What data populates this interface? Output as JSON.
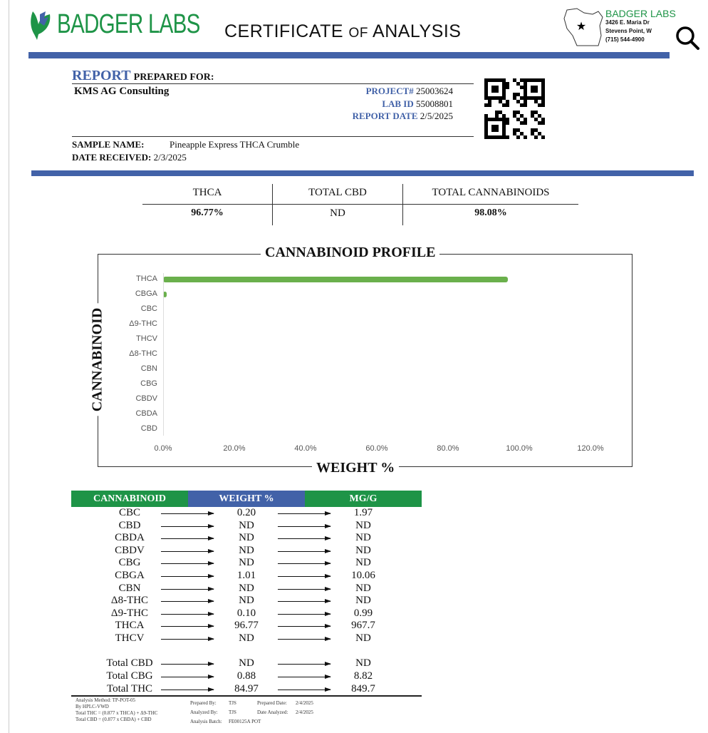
{
  "header": {
    "brand": "BADGER LABS",
    "title_a": "CERTIFICATE",
    "title_of": "OF",
    "title_b": "ANALYSIS",
    "addr_name": "BADGER LABS",
    "addr_line1": "3426 E. Maria Dr",
    "addr_line2": "Stevens Point, W",
    "phone": "(715) 544-4900"
  },
  "report": {
    "report": "REPORT",
    "prepared_for": "PREPARED FOR:",
    "client": "KMS AG Consulting",
    "project_label": "PROJECT#",
    "project": "25003624",
    "labid_label": "LAB ID",
    "labid": "55008801",
    "date_label": "REPORT DATE",
    "date": "2/5/2025",
    "sample_label": "SAMPLE NAME:",
    "sample": "Pineapple Express THCA Crumble",
    "received_label": "DATE RECEIVED:",
    "received": "2/3/2025"
  },
  "summary": {
    "headers": [
      "THCA",
      "TOTAL CBD",
      "TOTAL CANNABINOIDS"
    ],
    "values": [
      "96.77%",
      "ND",
      "98.08%"
    ]
  },
  "chart_data": {
    "type": "bar",
    "orientation": "horizontal",
    "title": "CANNABINOID PROFILE",
    "xlabel": "WEIGHT %",
    "ylabel": "CANNABINOID",
    "categories": [
      "THCA",
      "CBGA",
      "CBC",
      "Δ9-THC",
      "THCV",
      "Δ8-THC",
      "CBN",
      "CBG",
      "CBDV",
      "CBDA",
      "CBD"
    ],
    "values": [
      96.77,
      1.01,
      0.2,
      0.1,
      0,
      0,
      0,
      0,
      0,
      0,
      0
    ],
    "xlim": [
      0,
      120
    ],
    "xticks": [
      "0.0%",
      "20.0%",
      "40.0%",
      "60.0%",
      "80.0%",
      "100.0%",
      "120.0%"
    ],
    "color": "#6ab04c"
  },
  "table": {
    "headers": [
      "CANNABINOID",
      "WEIGHT %",
      "MG/G"
    ],
    "header_colors": [
      "#1e9447",
      "#4262a8",
      "#1e9447"
    ],
    "rows": [
      [
        "CBC",
        "0.20",
        "1.97"
      ],
      [
        "CBD",
        "ND",
        "ND"
      ],
      [
        "CBDA",
        "ND",
        "ND"
      ],
      [
        "CBDV",
        "ND",
        "ND"
      ],
      [
        "CBG",
        "ND",
        "ND"
      ],
      [
        "CBGA",
        "1.01",
        "10.06"
      ],
      [
        "CBN",
        "ND",
        "ND"
      ],
      [
        "Δ8-THC",
        "ND",
        "ND"
      ],
      [
        "Δ9-THC",
        "0.10",
        "0.99"
      ],
      [
        "THCA",
        "96.77",
        "967.7"
      ],
      [
        "THCV",
        "ND",
        "ND"
      ]
    ],
    "totals": [
      [
        "Total CBD",
        "ND",
        "ND"
      ],
      [
        "Total CBG",
        "0.88",
        "8.82"
      ],
      [
        "Total THC",
        "84.97",
        "849.7"
      ]
    ]
  },
  "footer": {
    "method": "Analysis Method: TP-POT-05",
    "by": "By HPLC-VWD",
    "thc_formula": "Total THC = (0.877 x  THCA) + Δ9-THC",
    "cbd_formula": "Total CBD = (0.877 x  CBDA) + CBD",
    "prepared_by_label": "Prepared By:",
    "prepared_by": "TJS",
    "prepared_date_label": "Prepared Date:",
    "prepared_date": "2/4/2025",
    "analyzed_by_label": "Analyzed By:",
    "analyzed_by": "TJS",
    "analyzed_date_label": "Date Analyzed:",
    "analyzed_date": "2/4/2025",
    "batch_label": "Analysis Batch:",
    "batch": "FE00125A POT"
  }
}
